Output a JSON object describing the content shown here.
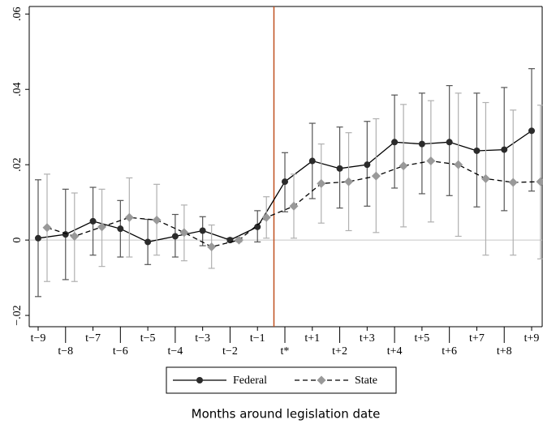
{
  "chart_data": {
    "type": "errorbar",
    "x_label": "Months around legislation date",
    "categories": [
      "t−9",
      "t−8",
      "t−7",
      "t−6",
      "t−5",
      "t−4",
      "t−3",
      "t−2",
      "t−1",
      "t*",
      "t+1",
      "t+2",
      "t+3",
      "t+4",
      "t+5",
      "t+6",
      "t+7",
      "t+8",
      "t+9"
    ],
    "ylim": [
      -0.023,
      0.062
    ],
    "yticks": [
      {
        "value": -0.02,
        "label": "−.02"
      },
      0,
      {
        "value": 0.02,
        "label": ".02"
      },
      {
        "value": 0.04,
        "label": ".04"
      },
      {
        "value": 0.06,
        "label": ".06"
      }
    ],
    "reference_line_color": "#c8c8c8",
    "event_line_color": "#c0501f",
    "series": [
      {
        "name": "Federal",
        "color": "#2b2b2b",
        "ci_color": "#555555",
        "line_style": "solid",
        "marker": "circle",
        "values": [
          0.0005,
          0.0015,
          0.005,
          0.003,
          -0.0005,
          0.001,
          0.0025,
          0,
          0.0035,
          0.0155,
          0.021,
          0.019,
          0.02,
          0.026,
          0.0255,
          0.026,
          0.0237,
          0.024,
          0.029
        ],
        "ci_low": [
          -0.015,
          -0.0105,
          -0.004,
          -0.0045,
          -0.0065,
          -0.0045,
          -0.0015,
          -0.0005,
          -0.0005,
          0.0075,
          0.011,
          0.0085,
          0.009,
          0.0138,
          0.0123,
          0.0118,
          0.0088,
          0.0078,
          0.013
        ],
        "ci_high": [
          0.016,
          0.0135,
          0.014,
          0.0105,
          0.0055,
          0.0068,
          0.0062,
          0.0005,
          0.0078,
          0.0232,
          0.031,
          0.03,
          0.0315,
          0.0385,
          0.039,
          0.041,
          0.039,
          0.0405,
          0.0455
        ]
      },
      {
        "name": "State",
        "color": "#999999",
        "ci_color": "#b0b0b0",
        "line_style": "dashed",
        "marker": "diamond",
        "values": [
          0.0033,
          0.001,
          0.0035,
          0.006,
          0.0053,
          0.002,
          -0.0018,
          0,
          0.006,
          0.009,
          0.015,
          0.0155,
          0.017,
          0.0197,
          0.021,
          0.02,
          0.0163,
          0.0153,
          0.0155
        ],
        "ci_low": [
          -0.011,
          -0.011,
          -0.007,
          -0.0045,
          -0.004,
          -0.0055,
          -0.0075,
          -0.0005,
          0.0005,
          0.0005,
          0.0045,
          0.0025,
          0.002,
          0.0035,
          0.0048,
          0.001,
          -0.004,
          -0.004,
          -0.005
        ],
        "ci_high": [
          0.0175,
          0.0125,
          0.0135,
          0.0165,
          0.0148,
          0.0093,
          0.004,
          0.0005,
          0.0115,
          0.0175,
          0.0255,
          0.0285,
          0.0322,
          0.036,
          0.037,
          0.039,
          0.0365,
          0.0345,
          0.0358
        ]
      }
    ]
  }
}
